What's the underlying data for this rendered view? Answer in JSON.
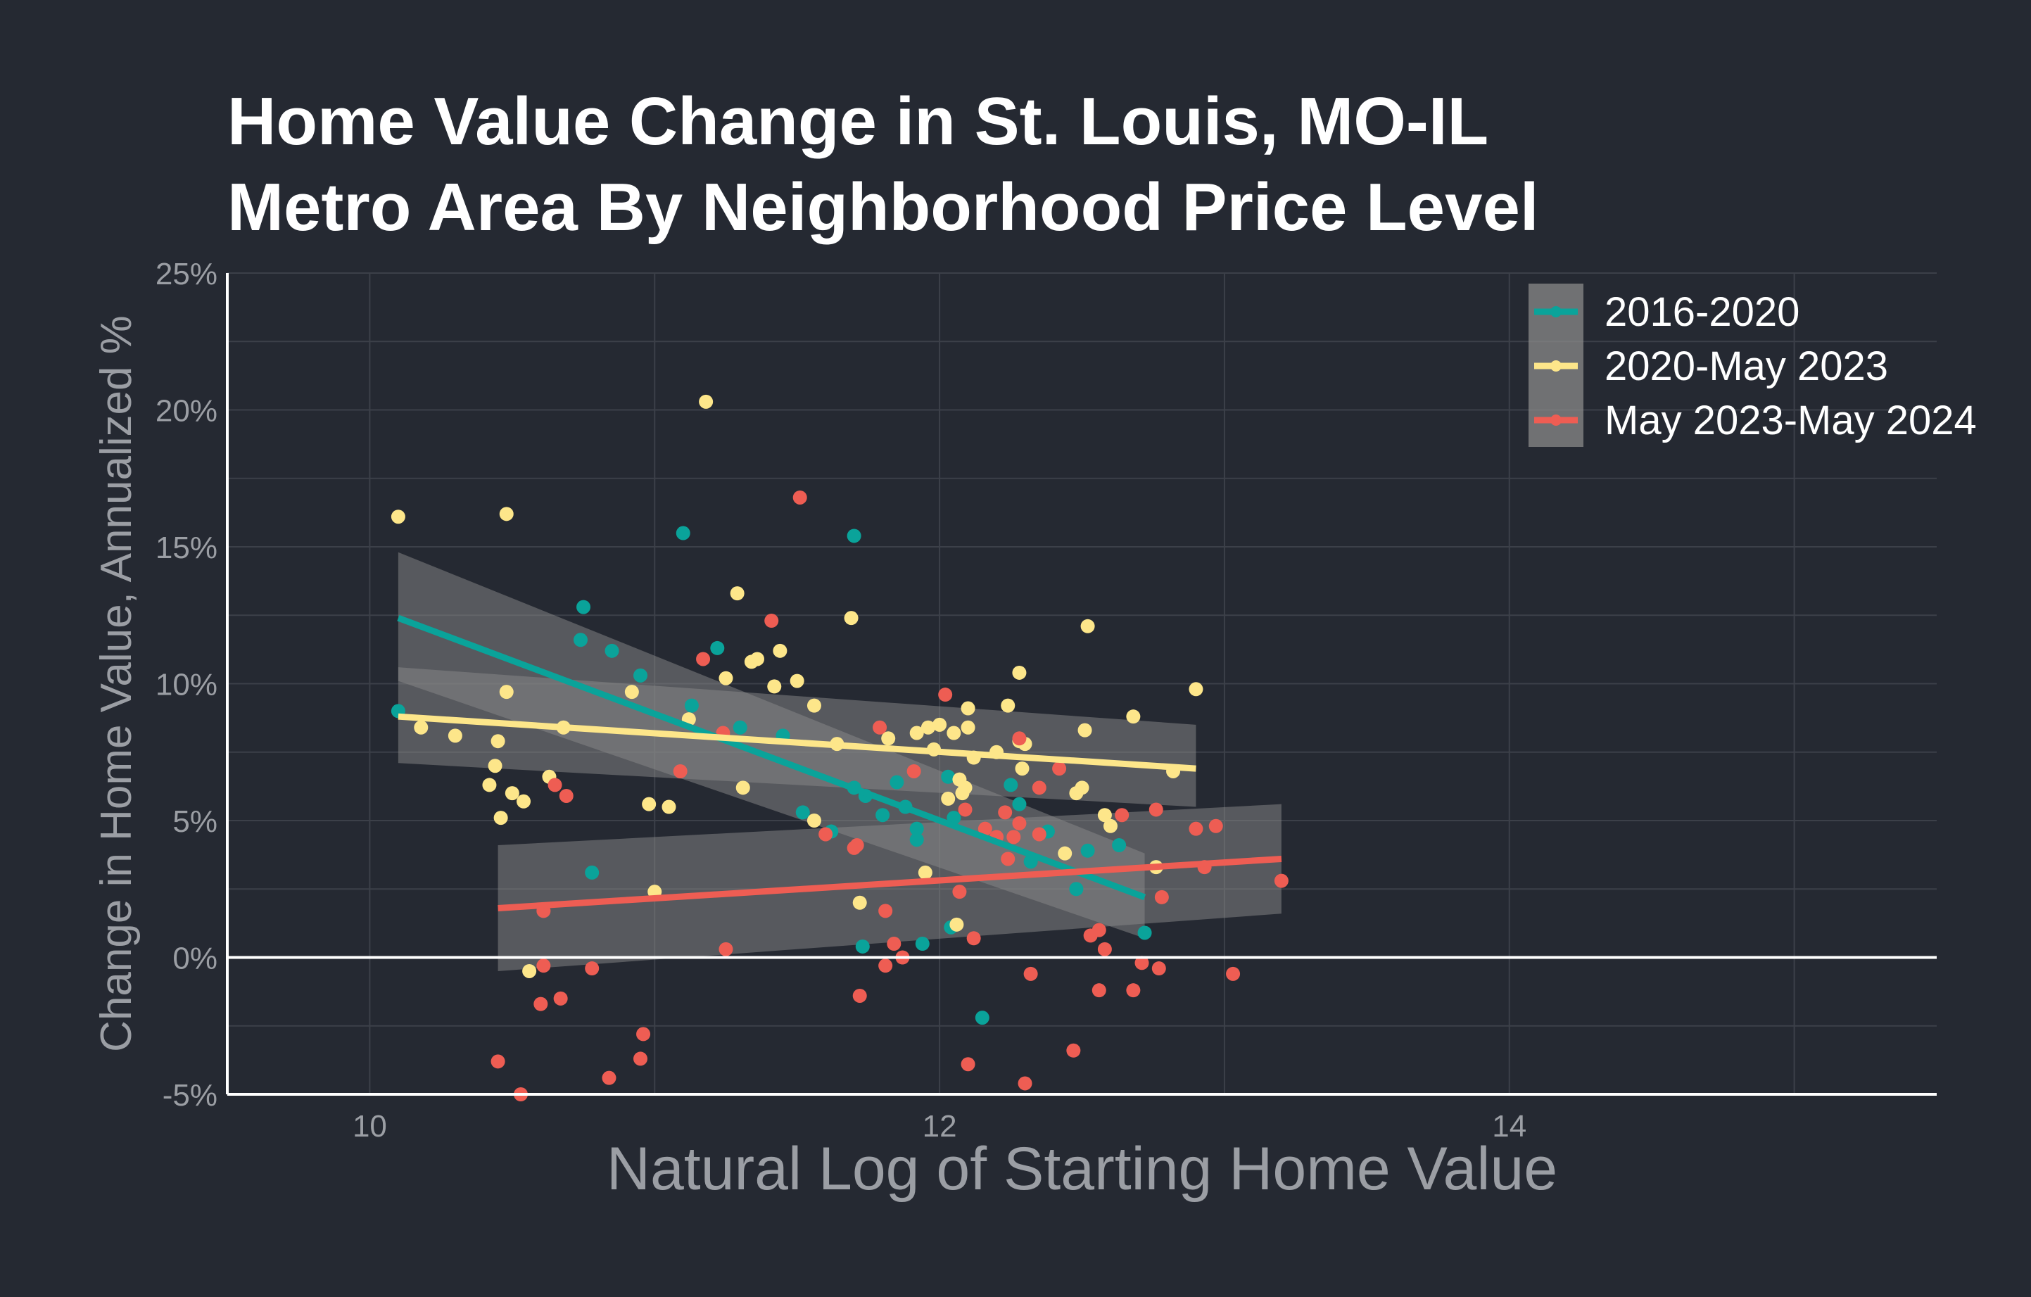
{
  "chart_data": {
    "type": "scatter",
    "title_lines": [
      "Home Value Change in St. Louis, MO-IL",
      "Metro Area By Neighborhood Price Level"
    ],
    "xlabel": "Natural Log of Starting Home Value",
    "ylabel": "Change in Home Value, Annualized %",
    "xlim": [
      9.5,
      15.5
    ],
    "ylim": [
      -5,
      25
    ],
    "x_ticks": [
      10,
      12,
      14
    ],
    "x_tick_labels": [
      "10",
      "12",
      "14"
    ],
    "y_ticks": [
      -5,
      0,
      5,
      10,
      15,
      20,
      25
    ],
    "y_tick_labels": [
      "-5%",
      "0%",
      "5%",
      "10%",
      "15%",
      "20%",
      "25%"
    ],
    "grid": true,
    "legend_position": "top-right",
    "reference_line_y": 0,
    "series": [
      {
        "name": "2016-2020",
        "color": "#0aa39a",
        "points": [
          [
            10.1,
            9.0
          ],
          [
            10.75,
            12.8
          ],
          [
            10.74,
            11.6
          ],
          [
            10.85,
            11.2
          ],
          [
            10.95,
            10.3
          ],
          [
            11.1,
            15.5
          ],
          [
            11.22,
            11.3
          ],
          [
            11.13,
            9.2
          ],
          [
            11.3,
            8.4
          ],
          [
            11.45,
            8.1
          ],
          [
            11.52,
            5.3
          ],
          [
            11.62,
            4.6
          ],
          [
            11.7,
            15.4
          ],
          [
            11.7,
            6.2
          ],
          [
            11.74,
            5.9
          ],
          [
            11.8,
            5.2
          ],
          [
            11.85,
            6.4
          ],
          [
            11.88,
            5.5
          ],
          [
            11.92,
            4.7
          ],
          [
            11.92,
            4.3
          ],
          [
            11.94,
            0.5
          ],
          [
            11.73,
            0.4
          ],
          [
            10.78,
            3.1
          ],
          [
            12.03,
            6.6
          ],
          [
            12.05,
            5.1
          ],
          [
            12.04,
            1.1
          ],
          [
            12.15,
            -2.2
          ],
          [
            12.25,
            6.3
          ],
          [
            12.28,
            5.6
          ],
          [
            12.32,
            3.5
          ],
          [
            12.38,
            4.6
          ],
          [
            12.48,
            2.5
          ],
          [
            12.52,
            3.9
          ],
          [
            12.63,
            4.1
          ],
          [
            12.72,
            0.9
          ]
        ],
        "fit": {
          "x": [
            10.1,
            12.72
          ],
          "y": [
            12.4,
            2.2
          ],
          "band_upper": [
            14.8,
            3.8
          ],
          "band_lower": [
            10.1,
            0.7
          ]
        }
      },
      {
        "name": "2020-May 2023",
        "color": "#fde68a",
        "points": [
          [
            10.1,
            16.1
          ],
          [
            10.18,
            8.4
          ],
          [
            10.3,
            8.1
          ],
          [
            10.42,
            6.3
          ],
          [
            10.44,
            7.0
          ],
          [
            10.45,
            7.9
          ],
          [
            10.46,
            5.1
          ],
          [
            10.48,
            9.7
          ],
          [
            10.48,
            16.2
          ],
          [
            10.5,
            6.0
          ],
          [
            10.54,
            5.7
          ],
          [
            10.56,
            -0.5
          ],
          [
            10.63,
            6.6
          ],
          [
            10.68,
            8.4
          ],
          [
            10.92,
            9.7
          ],
          [
            10.98,
            5.6
          ],
          [
            11.0,
            2.4
          ],
          [
            11.05,
            5.5
          ],
          [
            11.12,
            8.7
          ],
          [
            11.18,
            20.3
          ],
          [
            11.25,
            10.2
          ],
          [
            11.29,
            13.3
          ],
          [
            11.31,
            6.2
          ],
          [
            11.34,
            10.8
          ],
          [
            11.36,
            10.9
          ],
          [
            11.42,
            9.9
          ],
          [
            11.44,
            11.2
          ],
          [
            11.5,
            10.1
          ],
          [
            11.56,
            9.2
          ],
          [
            11.56,
            5.0
          ],
          [
            11.64,
            7.8
          ],
          [
            11.69,
            12.4
          ],
          [
            11.72,
            2.0
          ],
          [
            11.82,
            8.0
          ],
          [
            11.92,
            8.2
          ],
          [
            11.96,
            8.4
          ],
          [
            12.0,
            8.5
          ],
          [
            11.98,
            7.6
          ],
          [
            11.95,
            3.1
          ],
          [
            12.03,
            5.8
          ],
          [
            12.05,
            8.2
          ],
          [
            12.06,
            1.2
          ],
          [
            12.07,
            6.5
          ],
          [
            12.08,
            6.0
          ],
          [
            12.09,
            6.2
          ],
          [
            12.1,
            8.4
          ],
          [
            12.1,
            9.1
          ],
          [
            12.12,
            7.3
          ],
          [
            12.2,
            7.5
          ],
          [
            12.24,
            9.2
          ],
          [
            12.28,
            10.4
          ],
          [
            12.28,
            7.9
          ],
          [
            12.3,
            7.8
          ],
          [
            12.29,
            6.9
          ],
          [
            12.44,
            3.8
          ],
          [
            12.48,
            6.0
          ],
          [
            12.5,
            6.2
          ],
          [
            12.51,
            8.3
          ],
          [
            12.52,
            12.1
          ],
          [
            12.58,
            5.2
          ],
          [
            12.6,
            4.8
          ],
          [
            12.68,
            8.8
          ],
          [
            12.76,
            3.3
          ],
          [
            12.82,
            6.8
          ],
          [
            12.9,
            9.8
          ]
        ],
        "fit": {
          "x": [
            10.1,
            12.9
          ],
          "y": [
            8.8,
            6.9
          ],
          "band_upper": [
            10.6,
            8.5
          ],
          "band_lower": [
            7.1,
            5.5
          ]
        }
      },
      {
        "name": "May 2023-May 2024",
        "color": "#ee5d53",
        "points": [
          [
            10.45,
            -3.8
          ],
          [
            10.53,
            -5.0
          ],
          [
            10.6,
            -1.7
          ],
          [
            10.61,
            -0.3
          ],
          [
            10.61,
            1.7
          ],
          [
            10.65,
            6.3
          ],
          [
            10.67,
            -1.5
          ],
          [
            10.69,
            5.9
          ],
          [
            10.78,
            -0.4
          ],
          [
            10.84,
            -4.4
          ],
          [
            10.95,
            -3.7
          ],
          [
            10.96,
            -2.8
          ],
          [
            11.09,
            6.8
          ],
          [
            11.17,
            10.9
          ],
          [
            11.24,
            8.2
          ],
          [
            11.25,
            0.3
          ],
          [
            11.41,
            12.3
          ],
          [
            11.51,
            16.8
          ],
          [
            11.6,
            4.5
          ],
          [
            11.7,
            4.0
          ],
          [
            11.71,
            4.1
          ],
          [
            11.72,
            -1.4
          ],
          [
            11.79,
            8.4
          ],
          [
            11.81,
            1.7
          ],
          [
            11.81,
            -0.3
          ],
          [
            11.84,
            0.5
          ],
          [
            11.87,
            0.0
          ],
          [
            11.91,
            6.8
          ],
          [
            12.02,
            9.6
          ],
          [
            12.07,
            2.4
          ],
          [
            12.09,
            5.4
          ],
          [
            12.1,
            -3.9
          ],
          [
            12.12,
            0.7
          ],
          [
            12.16,
            4.7
          ],
          [
            12.2,
            4.4
          ],
          [
            12.23,
            5.3
          ],
          [
            12.24,
            3.6
          ],
          [
            12.26,
            4.4
          ],
          [
            12.28,
            4.9
          ],
          [
            12.28,
            8.0
          ],
          [
            12.3,
            -4.6
          ],
          [
            12.32,
            -0.6
          ],
          [
            12.35,
            6.2
          ],
          [
            12.35,
            4.5
          ],
          [
            12.42,
            6.9
          ],
          [
            12.47,
            -3.4
          ],
          [
            12.53,
            0.8
          ],
          [
            12.56,
            1.0
          ],
          [
            12.56,
            -1.2
          ],
          [
            12.58,
            0.3
          ],
          [
            12.64,
            5.2
          ],
          [
            12.68,
            -1.2
          ],
          [
            12.71,
            -0.2
          ],
          [
            12.76,
            5.4
          ],
          [
            12.77,
            -0.4
          ],
          [
            12.78,
            2.2
          ],
          [
            12.9,
            4.7
          ],
          [
            12.93,
            3.3
          ],
          [
            12.97,
            4.8
          ],
          [
            13.03,
            -0.6
          ],
          [
            13.2,
            2.8
          ]
        ],
        "fit": {
          "x": [
            10.45,
            13.2
          ],
          "y": [
            1.8,
            3.6
          ],
          "band_upper": [
            4.1,
            5.6
          ],
          "band_lower": [
            -0.5,
            1.6
          ]
        }
      }
    ]
  }
}
